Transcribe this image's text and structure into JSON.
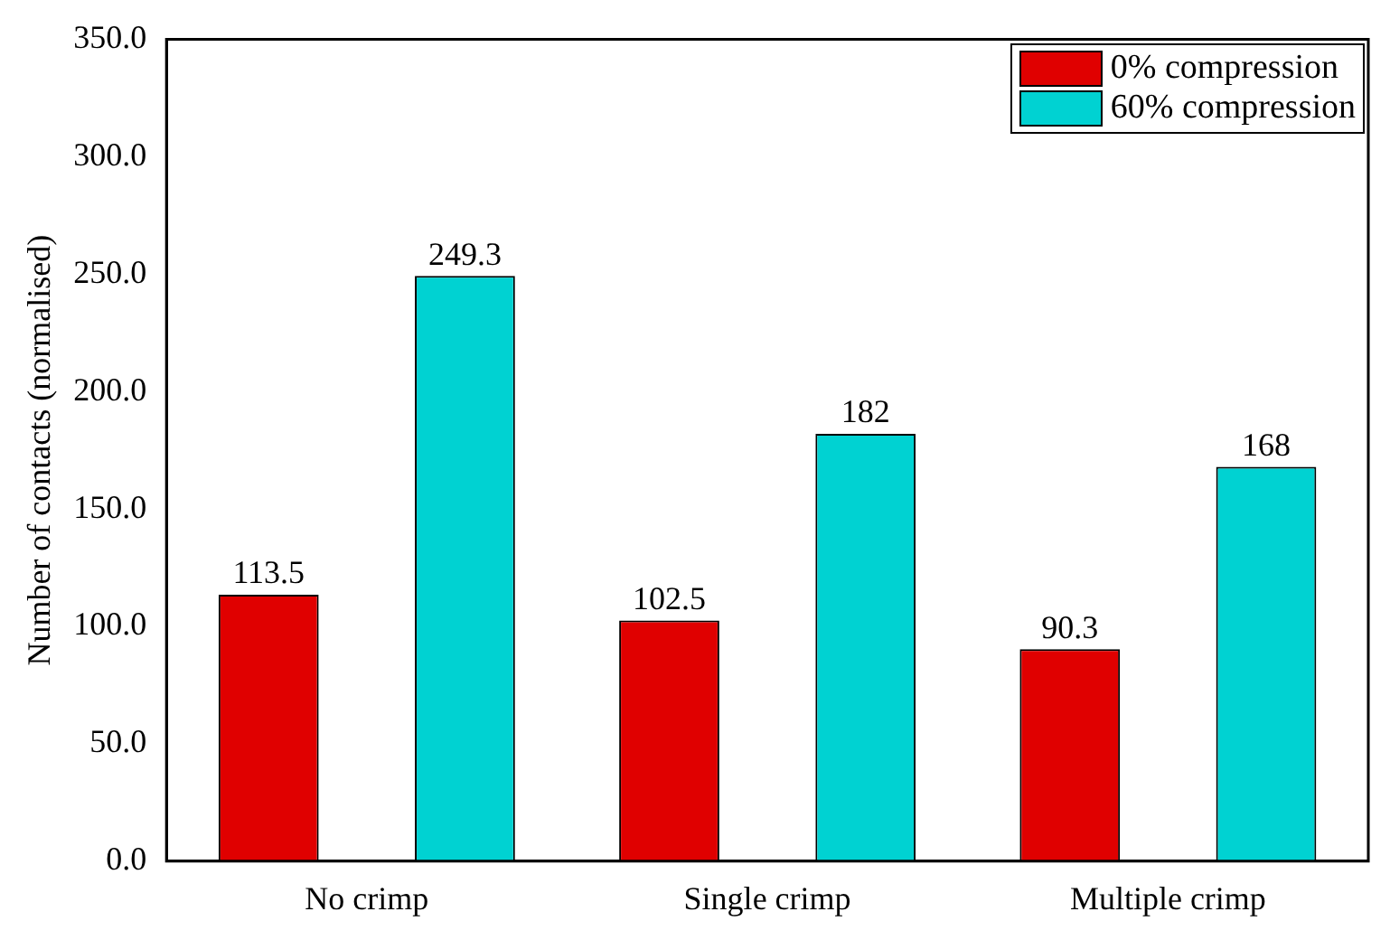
{
  "chart_data": {
    "type": "bar",
    "ylabel": "Number of contacts (normalised)",
    "categories": [
      "No crimp",
      "Single crimp",
      "Multiple crimp"
    ],
    "series": [
      {
        "name": "0% compression",
        "color": "#e00000",
        "values": [
          113.5,
          102.5,
          90.3
        ]
      },
      {
        "name": "60% compression",
        "color": "#00d2d2",
        "values": [
          249.3,
          182,
          168
        ]
      }
    ],
    "ylim": [
      0,
      350
    ],
    "yticks": [
      {
        "value": 0,
        "label": "0.0"
      },
      {
        "value": 50,
        "label": "50.0"
      },
      {
        "value": 100,
        "label": "100.0"
      },
      {
        "value": 150,
        "label": "150.0"
      },
      {
        "value": 200,
        "label": "200.0"
      },
      {
        "value": 250,
        "label": "250.0"
      },
      {
        "value": 300,
        "label": "300.0"
      },
      {
        "value": 350,
        "label": "350.0"
      }
    ],
    "data_labels": true,
    "legend": "top right",
    "grid": false
  }
}
